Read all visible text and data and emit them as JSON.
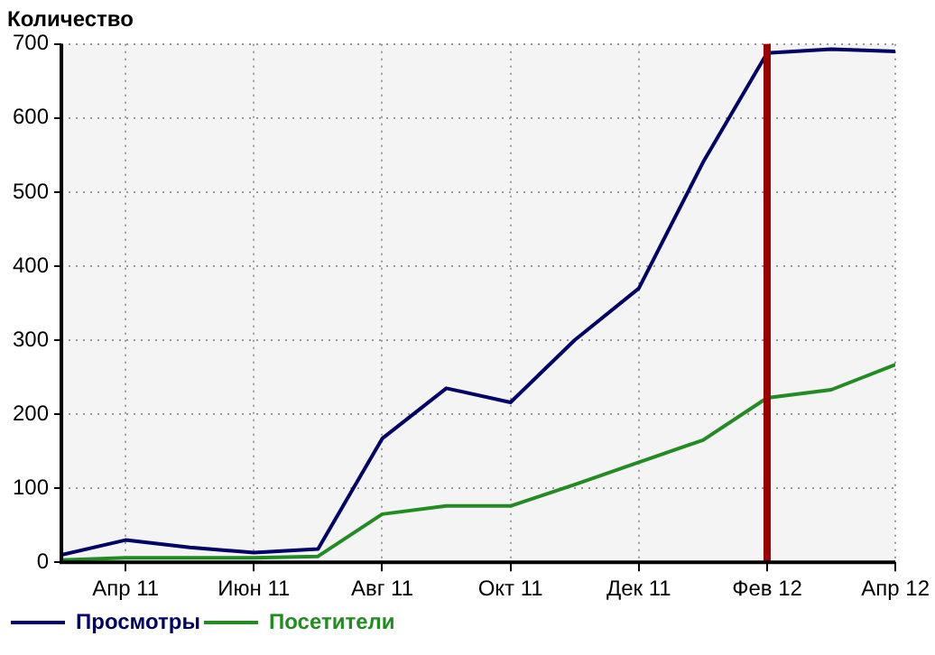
{
  "chart_data": {
    "type": "line",
    "title": "Количество",
    "x": [
      "2011-03",
      "2011-04",
      "2011-05",
      "2011-06",
      "2011-07",
      "2011-08",
      "2011-09",
      "2011-10",
      "2011-11",
      "2011-12",
      "2012-01",
      "2012-02",
      "2012-03",
      "2012-04"
    ],
    "series": [
      {
        "name": "Просмотры",
        "color": "#000066",
        "values": [
          10,
          30,
          20,
          13,
          18,
          167,
          235,
          216,
          300,
          370,
          540,
          688,
          693,
          690
        ]
      },
      {
        "name": "Посетители",
        "color": "#228b22",
        "values": [
          3,
          6,
          6,
          6,
          8,
          65,
          76,
          76,
          105,
          135,
          165,
          222,
          233,
          267
        ]
      }
    ],
    "xlim": [
      "2011-03",
      "2012-04"
    ],
    "xticks": [
      {
        "value": "2011-04",
        "label": "Апр 11"
      },
      {
        "value": "2011-06",
        "label": "Июн 11"
      },
      {
        "value": "2011-08",
        "label": "Авг 11"
      },
      {
        "value": "2011-10",
        "label": "Окт 11"
      },
      {
        "value": "2011-12",
        "label": "Дек 11"
      },
      {
        "value": "2012-02",
        "label": "Фев 12"
      },
      {
        "value": "2012-04",
        "label": "Апр 12"
      }
    ],
    "ylim": [
      0,
      700
    ],
    "yticks": [
      0,
      100,
      200,
      300,
      400,
      500,
      600,
      700
    ],
    "ref_lines": [
      {
        "axis": "x",
        "value": "2012-02",
        "color": "#990000"
      }
    ],
    "grid": true,
    "legend": "bottom left",
    "marker": "none",
    "line_style": "solid"
  }
}
